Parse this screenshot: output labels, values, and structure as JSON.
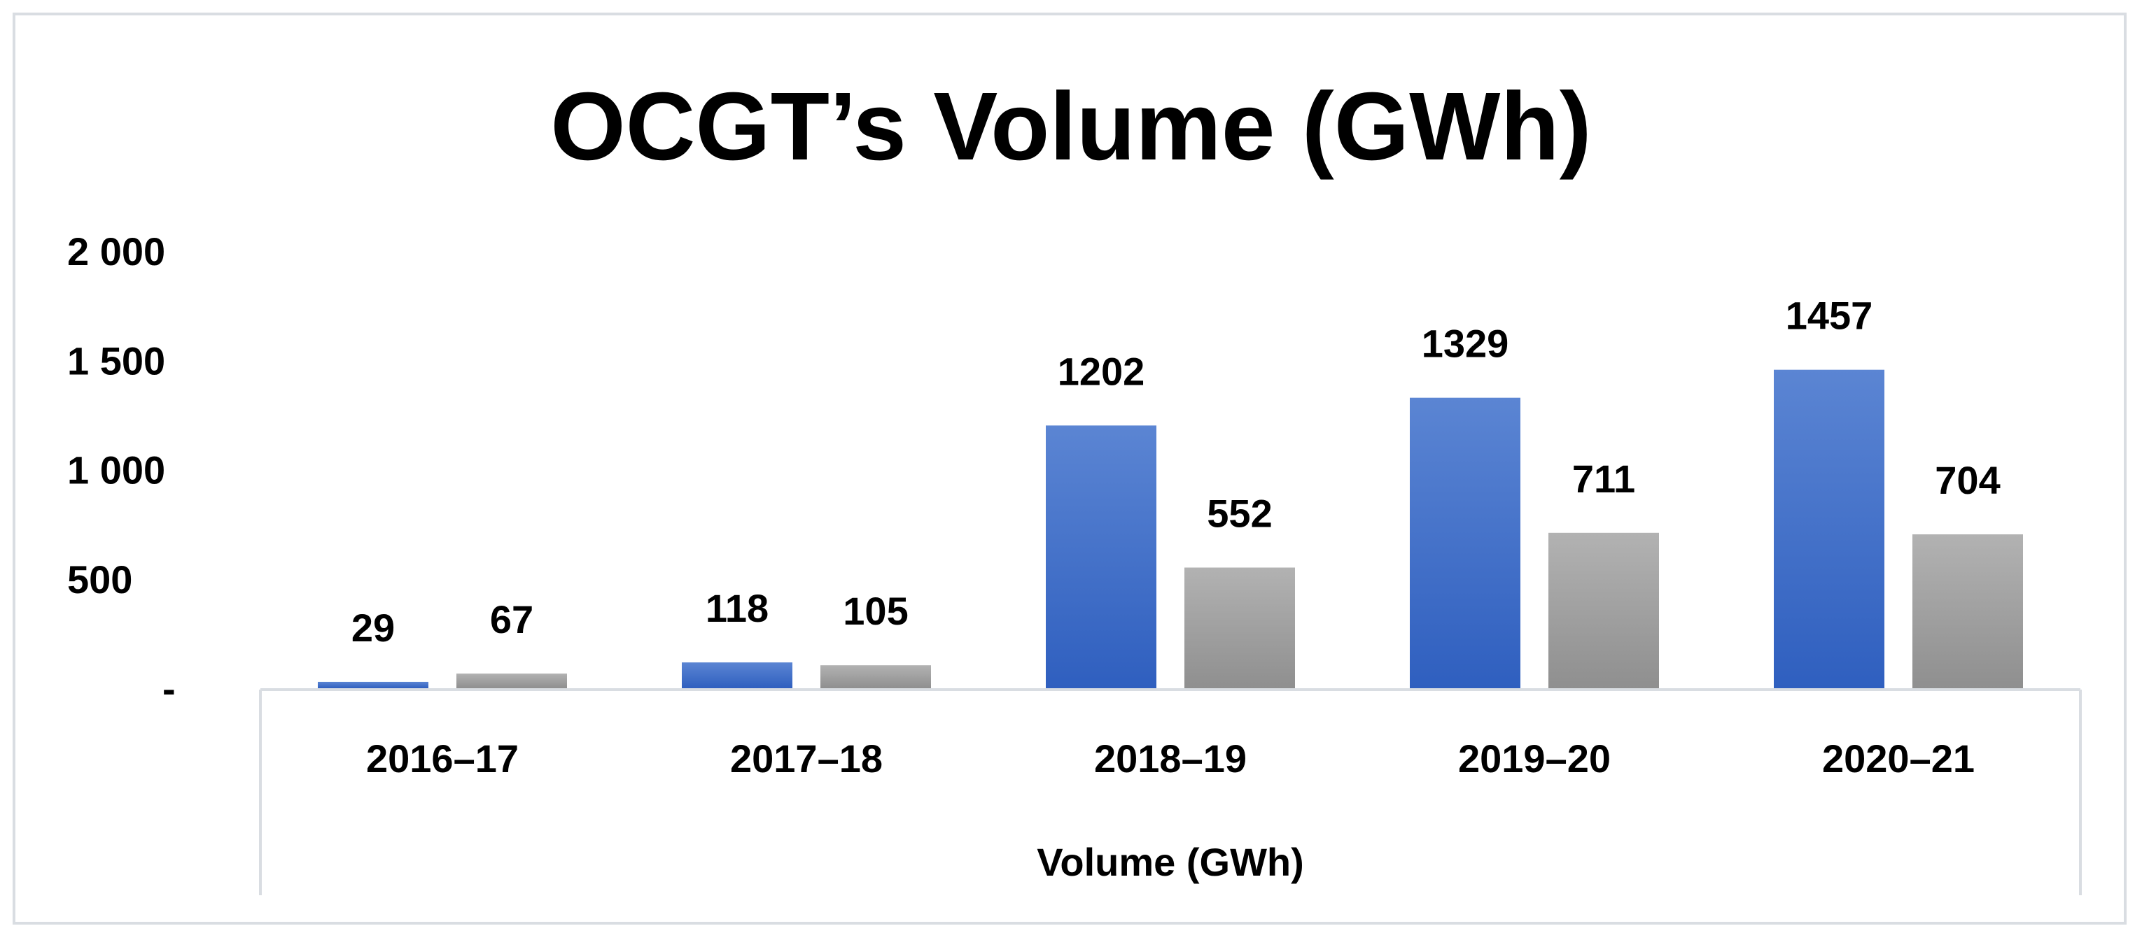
{
  "chart_data": {
    "type": "bar",
    "title": "OCGT’s Volume (GWh)",
    "xlabel": "Volume (GWh)",
    "ylabel": "",
    "ylim": [
      0,
      2000
    ],
    "yticks": [
      0,
      500,
      1000,
      1500,
      2000
    ],
    "ytick_labels": [
      "-",
      "500",
      "1 000",
      "1 500",
      "2 000"
    ],
    "categories": [
      "2016–17",
      "2017–18",
      "2018–19",
      "2019–20",
      "2020–21"
    ],
    "series": [
      {
        "name": "Series 1",
        "color": "#4472c4",
        "values": [
          29,
          118,
          1202,
          1329,
          1457
        ]
      },
      {
        "name": "Series 2",
        "color": "#a5a5a5",
        "values": [
          67,
          105,
          552,
          711,
          704
        ]
      }
    ],
    "legend": "none",
    "grid": false
  }
}
